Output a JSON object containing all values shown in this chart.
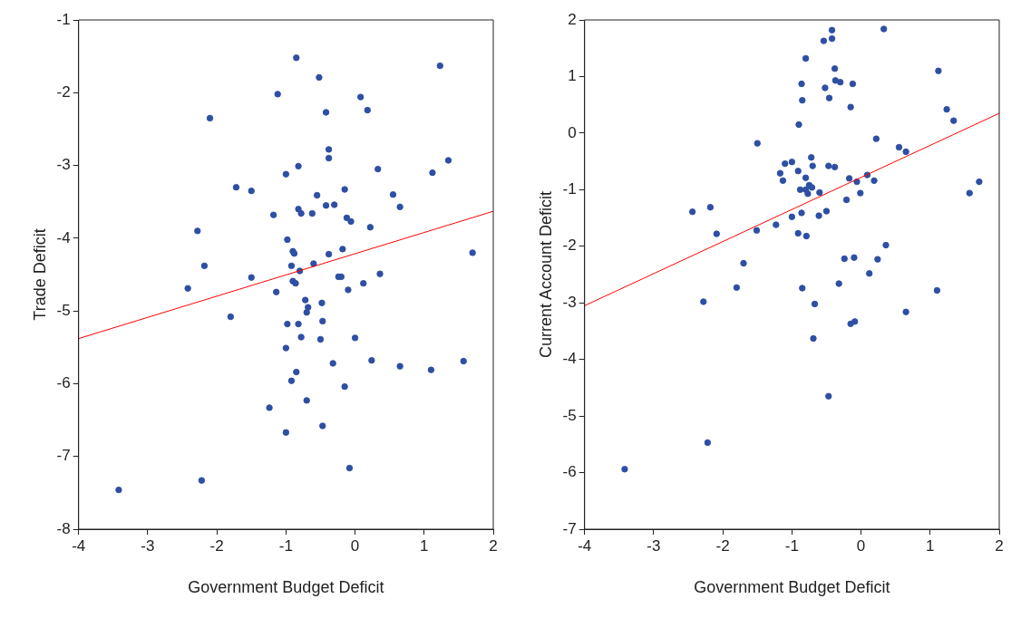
{
  "chart_data": [
    {
      "type": "scatter",
      "xlabel": "Government Budget Deficit",
      "ylabel": "Trade Deficit",
      "xlim": [
        -4,
        2
      ],
      "xticks": [
        -4,
        -3,
        -2,
        -1,
        0,
        1,
        2
      ],
      "ylim": [
        -8,
        -1
      ],
      "yticks": [
        -8,
        -7,
        -6,
        -5,
        -4,
        -3,
        -2,
        -1
      ],
      "grid": false,
      "legend": false,
      "marker": "circle",
      "series": [
        {
          "color": "#2e4fa3",
          "x": [
            -0.85,
            1.23,
            -0.52,
            -1.12,
            0.08,
            0.18,
            -0.42,
            -2.1,
            -0.38,
            -0.38,
            1.35,
            -0.82,
            0.33,
            1.12,
            -1.0,
            -1.72,
            -1.5,
            -0.15,
            0.55,
            -0.55,
            -0.3,
            -0.42,
            -0.82,
            -0.78,
            0.65,
            -0.62,
            -1.18,
            -0.12,
            -0.06,
            0.22,
            -2.28,
            -0.98,
            -0.9,
            -0.88,
            -0.38,
            -0.18,
            1.7,
            -0.6,
            -0.92,
            -2.18,
            -0.8,
            -0.24,
            -0.2,
            0.36,
            -1.5,
            -0.9,
            -0.86,
            0.12,
            -2.42,
            -1.14,
            -0.1,
            -0.72,
            -0.68,
            -0.48,
            -0.7,
            -1.8,
            -0.98,
            -0.82,
            -0.47,
            0.0,
            -0.78,
            -0.5,
            -1.0,
            0.24,
            1.57,
            -0.32,
            0.65,
            1.1,
            -0.85,
            -0.92,
            -0.15,
            -0.7,
            -1.24,
            -0.47,
            -1.0,
            -0.08,
            -2.22,
            -3.42
          ],
          "values": [
            -1.52,
            -1.63,
            -1.79,
            -2.02,
            -2.06,
            -2.24,
            -2.27,
            -2.35,
            -2.78,
            -2.9,
            -2.93,
            -3.01,
            -3.05,
            -3.1,
            -3.12,
            -3.3,
            -3.35,
            -3.33,
            -3.4,
            -3.41,
            -3.54,
            -3.55,
            -3.6,
            -3.66,
            -3.57,
            -3.66,
            -3.68,
            -3.72,
            -3.77,
            -3.85,
            -3.9,
            -4.02,
            -4.18,
            -4.21,
            -4.22,
            -4.15,
            -4.2,
            -4.35,
            -4.38,
            -4.38,
            -4.45,
            -4.53,
            -4.53,
            -4.49,
            -4.54,
            -4.59,
            -4.62,
            -4.62,
            -4.69,
            -4.74,
            -4.71,
            -4.85,
            -4.95,
            -4.89,
            -5.02,
            -5.08,
            -5.18,
            -5.18,
            -5.14,
            -5.37,
            -5.36,
            -5.39,
            -5.51,
            -5.68,
            -5.69,
            -5.72,
            -5.76,
            -5.81,
            -5.84,
            -5.96,
            -6.04,
            -6.23,
            -6.33,
            -6.58,
            -6.67,
            -7.16,
            -7.33,
            -7.46
          ]
        },
        {
          "type": "line",
          "color": "#ff0000",
          "marker": "none",
          "x": [
            -4,
            2
          ],
          "values": [
            -5.38,
            -3.63
          ]
        }
      ]
    },
    {
      "type": "scatter",
      "xlabel": "Government Budget Deficit",
      "ylabel": "Current Account Deficit",
      "xlim": [
        -4,
        2
      ],
      "xticks": [
        -4,
        -3,
        -2,
        -1,
        0,
        1,
        2
      ],
      "ylim": [
        -7,
        2
      ],
      "yticks": [
        -7,
        -6,
        -5,
        -4,
        -3,
        -2,
        -1,
        0,
        1,
        2
      ],
      "grid": false,
      "legend": false,
      "marker": "circle",
      "series": [
        {
          "color": "#2e4fa3",
          "x": [
            0.33,
            -0.42,
            -0.42,
            -0.54,
            1.12,
            -0.38,
            -0.8,
            -0.37,
            -0.3,
            -0.86,
            -0.12,
            -0.52,
            1.24,
            -0.46,
            -0.85,
            -0.15,
            1.34,
            -0.9,
            0.22,
            -1.5,
            0.55,
            0.65,
            -0.72,
            -1.0,
            -1.1,
            -0.7,
            -0.47,
            -0.38,
            -1.17,
            -0.91,
            0.09,
            -0.8,
            -0.17,
            0.19,
            -1.13,
            -0.06,
            -0.75,
            -0.71,
            -0.88,
            -0.8,
            -0.6,
            -0.01,
            1.57,
            1.71,
            -0.77,
            -0.21,
            -0.86,
            -0.5,
            -1.0,
            -0.61,
            -1.23,
            -1.51,
            -0.91,
            -0.79,
            -2.09,
            -2.18,
            -2.44,
            0.36,
            -0.1,
            -0.24,
            0.24,
            -1.7,
            0.12,
            -0.32,
            -0.85,
            -1.8,
            1.1,
            -0.67,
            -2.28,
            0.65,
            -0.15,
            -0.09,
            -0.69,
            -0.47,
            -2.22,
            -3.42
          ],
          "values": [
            1.84,
            1.82,
            1.67,
            1.63,
            1.1,
            1.14,
            1.32,
            0.93,
            0.9,
            0.87,
            0.87,
            0.8,
            0.42,
            0.62,
            0.58,
            0.46,
            0.22,
            0.15,
            -0.1,
            -0.18,
            -0.25,
            -0.33,
            -0.43,
            -0.51,
            -0.54,
            -0.58,
            -0.58,
            -0.6,
            -0.71,
            -0.67,
            -0.74,
            -0.79,
            -0.8,
            -0.84,
            -0.84,
            -0.86,
            -0.92,
            -0.96,
            -1.0,
            -1.0,
            -1.05,
            -1.06,
            -1.06,
            -0.86,
            -1.07,
            -1.18,
            -1.41,
            -1.38,
            -1.48,
            -1.46,
            -1.62,
            -1.72,
            -1.77,
            -1.82,
            -1.78,
            -1.31,
            -1.39,
            -1.98,
            -2.2,
            -2.22,
            -2.23,
            -2.3,
            -2.48,
            -2.66,
            -2.74,
            -2.73,
            -2.78,
            -3.02,
            -2.98,
            -3.16,
            -3.37,
            -3.33,
            -3.63,
            -4.65,
            -5.47,
            -5.94
          ]
        },
        {
          "type": "line",
          "color": "#ff0000",
          "marker": "none",
          "x": [
            -4,
            2
          ],
          "values": [
            -3.05,
            0.35
          ]
        }
      ]
    }
  ]
}
